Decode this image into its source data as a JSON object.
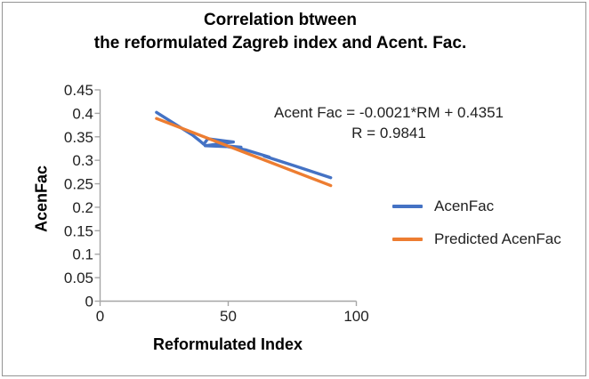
{
  "title": {
    "line1": "Correlation btween",
    "line2": "the reformulated Zagreb index and Acent. Fac."
  },
  "annotation": {
    "line1": "Acent Fac = -0.0021*RM + 0.4351",
    "line2": "R = 0.9841"
  },
  "legend": {
    "items": [
      {
        "label": "AcenFac",
        "color": "#4472C4"
      },
      {
        "label": "Predicted AcenFac",
        "color": "#ED7D31"
      }
    ]
  },
  "colors": {
    "series_blue": "#4472C4",
    "series_orange": "#ED7D31",
    "axis": "#A6A6A6",
    "text": "#1f1f1f",
    "border": "#949494"
  },
  "chart_data": {
    "type": "line",
    "title": "Correlation btween the reformulated Zagreb index and Acent. Fac.",
    "xlabel": "Reformulated Index",
    "ylabel": "AcenFac",
    "xlim": [
      0,
      100
    ],
    "ylim": [
      0,
      0.45
    ],
    "x_ticks": [
      0,
      50,
      100
    ],
    "x_tick_labels": [
      "0",
      "50",
      "100"
    ],
    "y_ticks": [
      0,
      0.05,
      0.1,
      0.15,
      0.2,
      0.25,
      0.3,
      0.35,
      0.4,
      0.45
    ],
    "y_tick_labels": [
      "0",
      "0.05",
      "0.1",
      "0.15",
      "0.2",
      "0.25",
      "0.3",
      "0.35",
      "0.4",
      "0.45"
    ],
    "grid": false,
    "legend_position": "right",
    "regression": {
      "equation": "Acent Fac = -0.0021*RM + 0.4351",
      "r": 0.9841,
      "slope": -0.0021,
      "intercept": 0.4351
    },
    "series": [
      {
        "name": "AcenFac",
        "color": "#4472C4",
        "points": [
          [
            22,
            0.402
          ],
          [
            36,
            0.354
          ],
          [
            39,
            0.341
          ],
          [
            40.5,
            0.334
          ],
          [
            42,
            0.346
          ],
          [
            52,
            0.339
          ],
          [
            41,
            0.331
          ],
          [
            55,
            0.328
          ],
          [
            47,
            0.3315
          ],
          [
            57,
            0.322
          ],
          [
            66,
            0.307
          ],
          [
            64,
            0.309
          ],
          [
            76,
            0.288
          ],
          [
            90,
            0.263
          ]
        ]
      },
      {
        "name": "Predicted AcenFac",
        "color": "#ED7D31",
        "points": [
          [
            22,
            0.3889
          ],
          [
            90,
            0.2461
          ]
        ]
      }
    ]
  }
}
